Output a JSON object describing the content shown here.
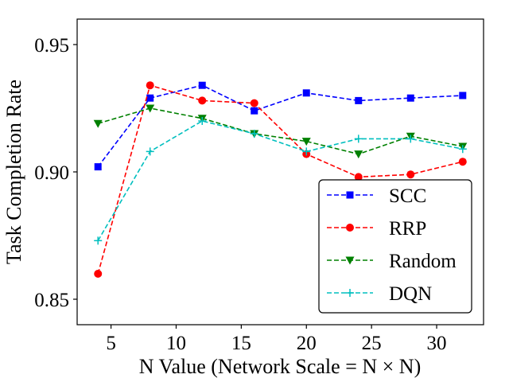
{
  "chart_data": {
    "type": "line",
    "title": "",
    "xlabel": "N Value (Network Scale = N × N)",
    "ylabel": "Task Completion Rate",
    "xlim": [
      2.4,
      33.6
    ],
    "ylim": [
      0.84,
      0.96
    ],
    "x_ticks": [
      5,
      10,
      15,
      20,
      25,
      30
    ],
    "y_ticks": [
      0.85,
      0.9,
      0.95
    ],
    "x_tick_labels": [
      "5",
      "10",
      "15",
      "20",
      "25",
      "30"
    ],
    "y_tick_labels": [
      "0.85",
      "0.90",
      "0.95"
    ],
    "grid": false,
    "legend_position": "lower-right",
    "x": [
      4,
      8,
      12,
      16,
      20,
      24,
      28,
      32
    ],
    "series": [
      {
        "name": "SCC",
        "color": "#0000ff",
        "marker": "square",
        "values": [
          0.902,
          0.929,
          0.934,
          0.924,
          0.931,
          0.928,
          0.929,
          0.93
        ]
      },
      {
        "name": "RRP",
        "color": "#ff0000",
        "marker": "circle",
        "values": [
          0.86,
          0.934,
          0.928,
          0.927,
          0.907,
          0.898,
          0.899,
          0.904
        ]
      },
      {
        "name": "Random",
        "color": "#008000",
        "marker": "triangle-down",
        "values": [
          0.919,
          0.925,
          0.921,
          0.915,
          0.912,
          0.907,
          0.914,
          0.91
        ]
      },
      {
        "name": "DQN",
        "color": "#00bfbf",
        "marker": "plus",
        "values": [
          0.873,
          0.908,
          0.92,
          0.915,
          0.908,
          0.913,
          0.913,
          0.909
        ]
      }
    ]
  }
}
